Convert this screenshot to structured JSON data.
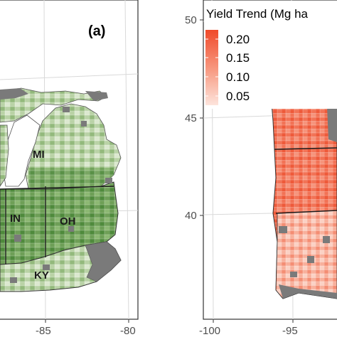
{
  "panel_a": {
    "tag": "(a)",
    "x_ticks": [
      "-85",
      "-80"
    ],
    "state_labels": [
      "MI",
      "IN",
      "OH",
      "KY"
    ],
    "fill_colors": [
      "#e6f0de",
      "#b5cfa4",
      "#7fad66",
      "#4f8a3c",
      "#3a6e2b"
    ],
    "no_data_color": "#7a7a7a"
  },
  "panel_b": {
    "legend": {
      "title": "Yield Trend (Mg ha",
      "ticks": [
        "0.20",
        "0.15",
        "0.10",
        "0.05"
      ],
      "color_high": "#f04a2a",
      "color_low": "#fde4dc"
    },
    "x_ticks": [
      "-100",
      "-95"
    ],
    "y_ticks": [
      "50",
      "45",
      "40"
    ],
    "fill_colors": [
      "#fbd3c6",
      "#f8b29f",
      "#f48c73",
      "#f06a4c",
      "#ec5436"
    ],
    "no_data_color": "#7a7a7a"
  }
}
